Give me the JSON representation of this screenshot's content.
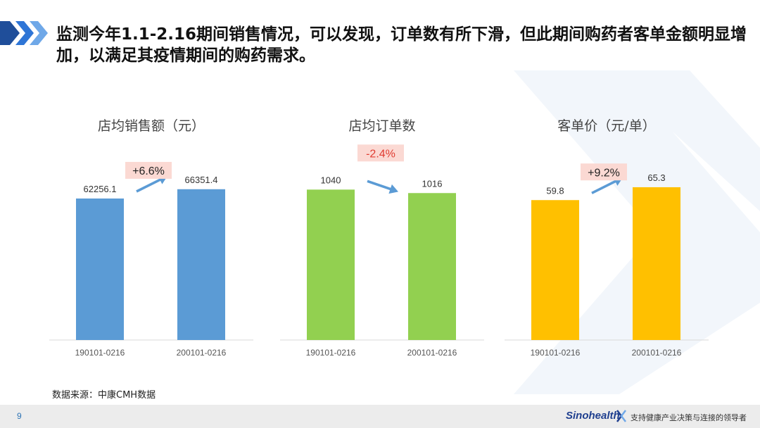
{
  "title": "监测今年1.1-2.16期间销售情况，可以发现，订单数有所下滑，但此期间购药者客单金额明显增加，以满足其疫情期间的购药需求。",
  "source_note": "数据来源：中康CMH数据",
  "footer": {
    "page_number": "9",
    "logo_text": "Sinohealth",
    "slogan": "支持健康产业决策与连接的领导者"
  },
  "colors": {
    "accent_blue": "#1f4e9a",
    "arrow_blue": "#5b9bd5",
    "badge_bg": "#fbd9d3",
    "badge_text_positive": "#222222",
    "badge_text_negative": "#e03c31"
  },
  "chart_data": [
    {
      "type": "bar",
      "title": "店均销售额（元）",
      "categories": [
        "190101-0216",
        "200101-0216"
      ],
      "values": [
        62256.1,
        66351.4
      ],
      "value_labels": [
        "62256.1",
        "66351.4"
      ],
      "change_label": "+6.6%",
      "change_direction": "up",
      "color": "#5b9bd5",
      "ylim": [
        0,
        70000
      ]
    },
    {
      "type": "bar",
      "title": "店均订单数",
      "categories": [
        "190101-0216",
        "200101-0216"
      ],
      "values": [
        1040,
        1016
      ],
      "value_labels": [
        "1040",
        "1016"
      ],
      "change_label": "-2.4%",
      "change_direction": "down",
      "color": "#92d050",
      "ylim": [
        0,
        1100
      ]
    },
    {
      "type": "bar",
      "title": "客单价（元/单）",
      "categories": [
        "190101-0216",
        "200101-0216"
      ],
      "values": [
        59.8,
        65.3
      ],
      "value_labels": [
        "59.8",
        "65.3"
      ],
      "change_label": "+9.2%",
      "change_direction": "up",
      "color": "#ffc000",
      "ylim": [
        0,
        68
      ]
    }
  ]
}
